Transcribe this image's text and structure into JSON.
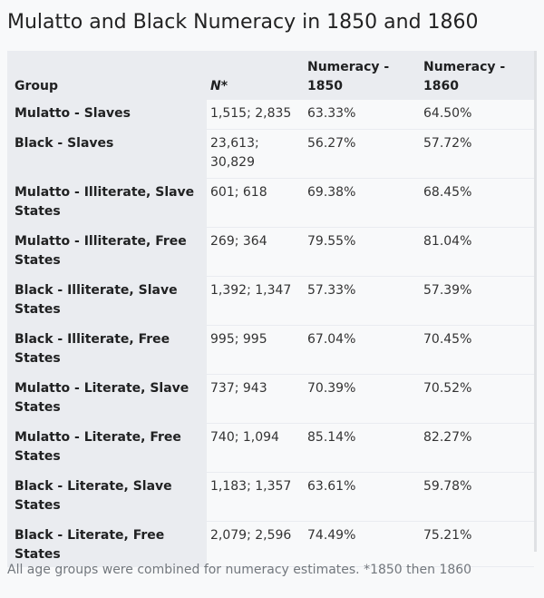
{
  "title": "Mulatto and Black Numeracy in 1850 and 1860",
  "table": {
    "headers": {
      "group": "Group",
      "n": "N*",
      "num1850": "Numeracy - 1850",
      "num1860": "Numeracy - 1860"
    },
    "rows": [
      {
        "group": "Mulatto - Slaves",
        "n": "1,515; 2,835",
        "v1850": "63.33%",
        "v1860": "64.50%"
      },
      {
        "group": "Black - Slaves",
        "n": "23,613; 30,829",
        "v1850": "56.27%",
        "v1860": "57.72%"
      },
      {
        "group": "Mulatto - Illiterate, Slave States",
        "n": "601; 618",
        "v1850": "69.38%",
        "v1860": "68.45%"
      },
      {
        "group": "Mulatto - Illiterate, Free States",
        "n": "269; 364",
        "v1850": "79.55%",
        "v1860": "81.04%"
      },
      {
        "group": "Black - Illiterate, Slave States",
        "n": "1,392; 1,347",
        "v1850": "57.33%",
        "v1860": "57.39%"
      },
      {
        "group": "Black - Illiterate, Free States",
        "n": "995; 995",
        "v1850": "67.04%",
        "v1860": "70.45%"
      },
      {
        "group": "Mulatto - Literate, Slave States",
        "n": "737; 943",
        "v1850": "70.39%",
        "v1860": "70.52%"
      },
      {
        "group": "Mulatto - Literate, Free States",
        "n": "740; 1,094",
        "v1850": "85.14%",
        "v1860": "82.27%"
      },
      {
        "group": "Black - Literate, Slave States",
        "n": "1,183; 1,357",
        "v1850": "63.61%",
        "v1860": "59.78%"
      },
      {
        "group": "Black - Literate, Free States",
        "n": "2,079; 2,596",
        "v1850": "74.49%",
        "v1860": "75.21%"
      }
    ]
  },
  "footnote": "All age groups were combined for numeracy estimates. *1850 then 1860"
}
